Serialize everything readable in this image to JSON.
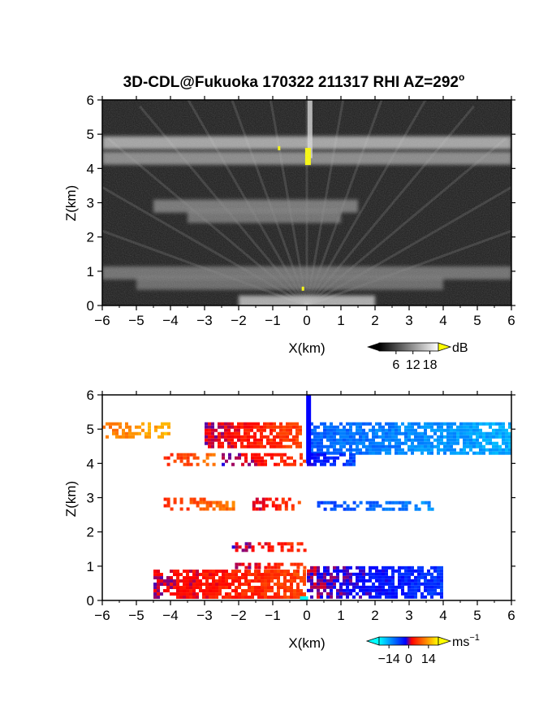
{
  "title": "3D-CDL@Fukuoka 170322 211317 RHI AZ=292",
  "title_degree": "o",
  "chart_data": [
    {
      "type": "heatmap",
      "name": "backscatter intensity",
      "xlabel": "X(km)",
      "ylabel": "Z(km)",
      "xlim": [
        -6,
        6
      ],
      "ylim": [
        0,
        6
      ],
      "xticks": [
        "−6",
        "−5",
        "−4",
        "−3",
        "−2",
        "−1",
        "0",
        "1",
        "2",
        "3",
        "4",
        "5",
        "6"
      ],
      "yticks": [
        "0",
        "1",
        "2",
        "3",
        "4",
        "5",
        "6"
      ],
      "colorbar": {
        "unit": "dB",
        "tick_labels": [
          "6",
          "12",
          "18"
        ],
        "tick_values": [
          6,
          12,
          18
        ],
        "range": [
          0,
          21
        ],
        "colors": [
          "#000000",
          "#ffffff"
        ],
        "extend_high_color": "#ffff00"
      },
      "features": [
        {
          "z_km": 4.75,
          "x_range": [
            -6,
            6
          ],
          "level": 0.75
        },
        {
          "z_km": 4.3,
          "x_range": [
            -6,
            6
          ],
          "level": 0.55
        },
        {
          "z_km": 2.9,
          "x_range": [
            -4.5,
            1.5
          ],
          "level": 0.4
        },
        {
          "z_km": 2.6,
          "x_range": [
            -3.5,
            1.0
          ],
          "level": 0.35
        },
        {
          "z_km": 0.95,
          "x_range": [
            -6,
            6
          ],
          "level": 0.35
        },
        {
          "z_km": 0.65,
          "x_range": [
            -5,
            4
          ],
          "level": 0.3
        },
        {
          "z_km": 0.1,
          "x_range": [
            -2,
            2
          ],
          "level": 0.8
        }
      ]
    },
    {
      "type": "heatmap",
      "name": "doppler velocity",
      "xlabel": "X(km)",
      "ylabel": "Z(km)",
      "xlim": [
        -6,
        6
      ],
      "ylim": [
        0,
        6
      ],
      "xticks": [
        "−6",
        "−5",
        "−4",
        "−3",
        "−2",
        "−1",
        "0",
        "1",
        "2",
        "3",
        "4",
        "5",
        "6"
      ],
      "yticks": [
        "0",
        "1",
        "2",
        "3",
        "4",
        "5",
        "6"
      ],
      "colorbar": {
        "unit": "ms",
        "unit_exponent": "−1",
        "tick_labels": [
          "−14",
          "0",
          "14"
        ],
        "tick_values": [
          -14,
          0,
          14
        ],
        "range": [
          -21,
          21
        ],
        "colors": [
          "#00ffff",
          "#0000ff",
          "#ff0000",
          "#ffff00"
        ]
      },
      "regions": [
        {
          "x_range": [
            -6.0,
            -4.0
          ],
          "z_range": [
            4.7,
            5.2
          ],
          "velocity": 13
        },
        {
          "x_range": [
            -3.0,
            -0.1
          ],
          "z_range": [
            4.4,
            5.2
          ],
          "velocity": 4
        },
        {
          "x_range": [
            0.0,
            6.0
          ],
          "z_range": [
            4.2,
            5.2
          ],
          "velocity": -12
        },
        {
          "x_range": [
            -4.2,
            -2.6
          ],
          "z_range": [
            3.9,
            4.3
          ],
          "velocity": 8
        },
        {
          "x_range": [
            -2.5,
            0.0
          ],
          "z_range": [
            3.9,
            4.3
          ],
          "velocity": 3
        },
        {
          "x_range": [
            0.0,
            1.5
          ],
          "z_range": [
            3.9,
            4.3
          ],
          "velocity": -5
        },
        {
          "x_range": [
            -4.2,
            -2.1
          ],
          "z_range": [
            2.6,
            3.0
          ],
          "velocity": 8
        },
        {
          "x_range": [
            -1.6,
            -0.1
          ],
          "z_range": [
            2.6,
            3.0
          ],
          "velocity": 4
        },
        {
          "x_range": [
            0.3,
            3.8
          ],
          "z_range": [
            2.6,
            2.9
          ],
          "velocity": -10
        },
        {
          "x_range": [
            -2.2,
            0.0
          ],
          "z_range": [
            1.4,
            1.7
          ],
          "velocity": 3
        },
        {
          "x_range": [
            -2.3,
            0.0
          ],
          "z_range": [
            0.9,
            1.1
          ],
          "velocity": 3
        },
        {
          "x_range": [
            -4.5,
            0.0
          ],
          "z_range": [
            0.0,
            0.9
          ],
          "velocity": 4
        },
        {
          "x_range": [
            0.0,
            4.0
          ],
          "z_range": [
            0.0,
            1.0
          ],
          "velocity": -3
        }
      ]
    }
  ]
}
